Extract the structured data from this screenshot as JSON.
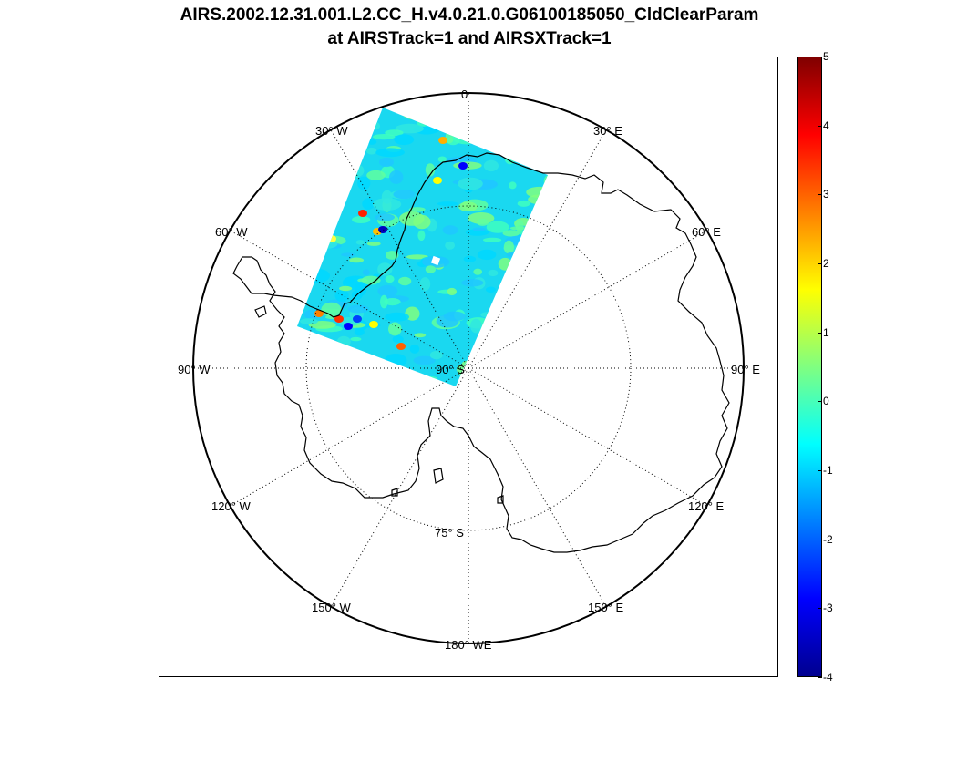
{
  "title": {
    "line1": "AIRS.2002.12.31.001.L2.CC_H.v4.0.21.0.G06100185050_CldClearParam",
    "line2": "at AIRSTrack=1 and AIRSXTrack=1"
  },
  "map": {
    "projection": "south-polar stereographic",
    "longitude_labels": [
      {
        "name": "lon-0",
        "text": "0"
      },
      {
        "name": "lon-30e",
        "text": "30° E"
      },
      {
        "name": "lon-60e",
        "text": "60° E"
      },
      {
        "name": "lon-90e",
        "text": "90° E"
      },
      {
        "name": "lon-120e",
        "text": "120° E"
      },
      {
        "name": "lon-150e",
        "text": "150° E"
      },
      {
        "name": "lon-180",
        "text": "180° WE"
      },
      {
        "name": "lon-150w",
        "text": "150° W"
      },
      {
        "name": "lon-120w",
        "text": "120° W"
      },
      {
        "name": "lon-90w",
        "text": "90° W"
      },
      {
        "name": "lon-60w",
        "text": "60° W"
      },
      {
        "name": "lon-30w",
        "text": "30° W"
      }
    ],
    "latitude_labels": [
      {
        "name": "lat-90s",
        "text": "90° S"
      },
      {
        "name": "lat-75s",
        "text": "75° S"
      }
    ],
    "swath_colormap": "jet",
    "coastline_color": "#000000",
    "graticule_style": "dotted"
  },
  "colorbar": {
    "colormap": "jet",
    "min": -4,
    "max": 5,
    "ticks": [
      "5",
      "4",
      "3",
      "2",
      "1",
      "0",
      "-1",
      "-2",
      "-3",
      "-4"
    ]
  }
}
